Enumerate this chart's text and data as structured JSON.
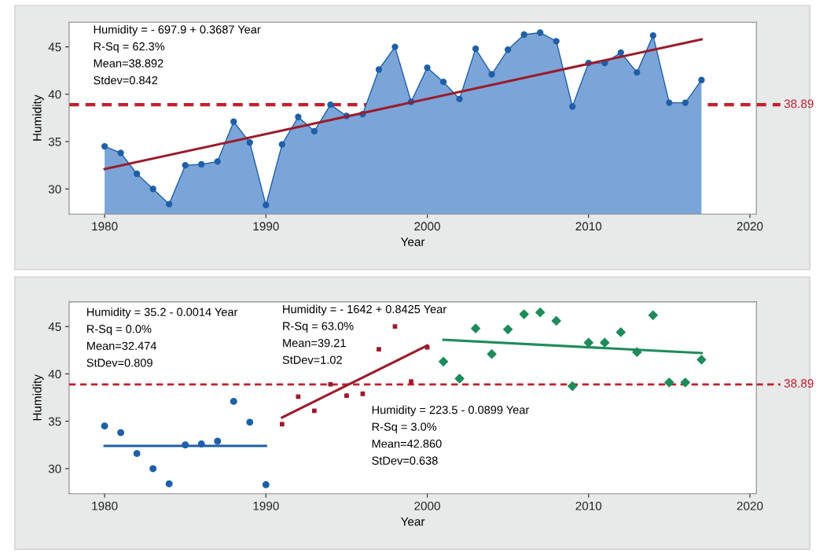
{
  "chart_data": [
    {
      "type": "area",
      "xlabel": "Year",
      "ylabel": "Humidity",
      "xlim": [
        1977.8,
        2020.4
      ],
      "ylim": [
        27.35,
        47.6
      ],
      "xticks": [
        1980,
        1990,
        2000,
        2010,
        2020
      ],
      "yticks": [
        30,
        35,
        40,
        45
      ],
      "grid": false,
      "legend": false,
      "series": [
        {
          "type": "area",
          "color": "#1f5fa8",
          "marker": "circle",
          "x": [
            1980,
            1981,
            1982,
            1983,
            1984,
            1985,
            1986,
            1987,
            1988,
            1989,
            1990,
            1991,
            1992,
            1993,
            1994,
            1995,
            1996,
            1997,
            1998,
            1999,
            2000,
            2001,
            2002,
            2003,
            2004,
            2005,
            2006,
            2007,
            2008,
            2009,
            2010,
            2011,
            2012,
            2013,
            2014,
            2015,
            2016,
            2017
          ],
          "values": [
            34.5,
            33.8,
            31.6,
            30.0,
            28.4,
            32.5,
            32.6,
            32.9,
            37.1,
            34.9,
            28.3,
            34.7,
            37.6,
            36.1,
            38.9,
            37.7,
            37.9,
            42.6,
            45.0,
            39.2,
            42.8,
            41.3,
            39.5,
            44.8,
            42.1,
            44.7,
            46.3,
            46.5,
            45.6,
            38.7,
            43.3,
            43.3,
            44.4,
            42.3,
            46.2,
            39.1,
            39.1,
            41.5
          ]
        },
        {
          "type": "line",
          "color": "#9b1c2c",
          "marker": "none",
          "x": [
            1980,
            2017
          ],
          "values": [
            32.1,
            45.8
          ]
        }
      ],
      "ref_lines": [
        {
          "axis": "y",
          "value": 38.89,
          "label": "38.89",
          "color": "#c0202f",
          "line_style": "dashed"
        }
      ],
      "annotations": [
        "Humidity = - 697.9 + 0.3687 Year\nR-Sq = 62.3%\nMean=38.892\nStdev=0.842"
      ]
    },
    {
      "type": "scatter",
      "xlabel": "Year",
      "ylabel": "Humidity",
      "xlim": [
        1977.8,
        2020.4
      ],
      "ylim": [
        27.35,
        47.6
      ],
      "xticks": [
        1980,
        1990,
        2000,
        2010,
        2020
      ],
      "yticks": [
        30,
        35,
        40,
        45
      ],
      "grid": false,
      "legend": false,
      "series": [
        {
          "type": "scatter",
          "color": "#1f5fa8",
          "marker": "circle",
          "x": [
            1980,
            1981,
            1982,
            1983,
            1984,
            1985,
            1986,
            1987,
            1988,
            1989,
            1990
          ],
          "values": [
            34.5,
            33.8,
            31.6,
            30.0,
            28.4,
            32.5,
            32.6,
            32.9,
            37.1,
            34.9,
            28.3
          ]
        },
        {
          "type": "scatter",
          "color": "#9b1c2c",
          "marker": "square",
          "x": [
            1991,
            1992,
            1993,
            1994,
            1995,
            1996,
            1997,
            1998,
            1999,
            2000
          ],
          "values": [
            34.7,
            37.6,
            36.1,
            38.9,
            37.7,
            37.9,
            42.6,
            45.0,
            39.2,
            42.8
          ]
        },
        {
          "type": "scatter",
          "color": "#1e8c5a",
          "marker": "diamond",
          "x": [
            2001,
            2002,
            2003,
            2004,
            2005,
            2006,
            2007,
            2008,
            2009,
            2010,
            2011,
            2012,
            2013,
            2014,
            2015,
            2016,
            2017
          ],
          "values": [
            41.3,
            39.5,
            44.8,
            42.1,
            44.7,
            46.3,
            46.5,
            45.6,
            38.7,
            43.3,
            43.3,
            44.4,
            42.3,
            46.2,
            39.1,
            39.1,
            41.5
          ]
        },
        {
          "type": "line",
          "color": "#1f5fa8",
          "marker": "none",
          "x": [
            1980,
            1990
          ],
          "values": [
            32.4,
            32.4
          ]
        },
        {
          "type": "line",
          "color": "#9b1c2c",
          "marker": "none",
          "x": [
            1991,
            2000
          ],
          "values": [
            35.4,
            43.0
          ]
        },
        {
          "type": "line",
          "color": "#1e8c5a",
          "marker": "none",
          "x": [
            2001,
            2017
          ],
          "values": [
            43.6,
            42.2
          ]
        }
      ],
      "ref_lines": [
        {
          "axis": "y",
          "value": 38.89,
          "label": "38.89",
          "color": "#c0202f",
          "line_style": "dashed"
        }
      ],
      "annotations": [
        "Humidity = 35.2 - 0.0014 Year\nR-Sq = 0.0%\nMean=32.474\nStDev=0.809",
        "Humidity = - 1642 + 0.8425 Year\nR-Sq = 63.0%\nMean=39.21\nStDev=1.02",
        "Humidity = 223.5 - 0.0899 Year\nR-Sq = 3.0%\nMean=42.860\nStDev=0.638"
      ]
    }
  ]
}
